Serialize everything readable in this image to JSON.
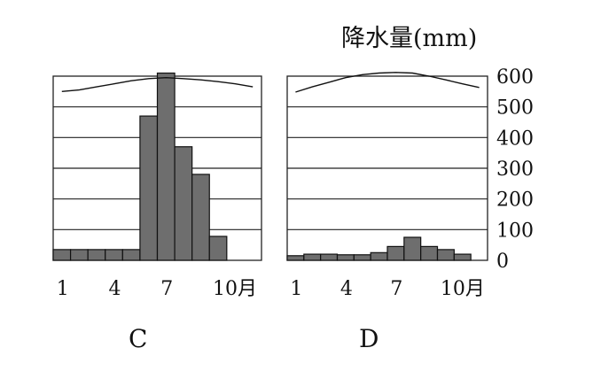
{
  "chart_data": [
    {
      "type": "bar",
      "label": "C",
      "categories": [
        "1",
        "2",
        "3",
        "4",
        "5",
        "6",
        "7",
        "8",
        "9",
        "10",
        "11",
        "12"
      ],
      "x_tick_labels": [
        "1",
        "4",
        "7",
        "10月"
      ],
      "values": [
        35,
        35,
        35,
        35,
        35,
        470,
        610,
        370,
        280,
        78,
        0,
        0
      ],
      "temperature_curve_on_axis": [
        550,
        555,
        565,
        575,
        585,
        592,
        595,
        592,
        588,
        582,
        575,
        565
      ],
      "ylim": [
        0,
        600
      ],
      "grid": true
    },
    {
      "type": "bar",
      "label": "D",
      "categories": [
        "1",
        "2",
        "3",
        "4",
        "5",
        "6",
        "7",
        "8",
        "9",
        "10",
        "11",
        "12"
      ],
      "x_tick_labels": [
        "1",
        "4",
        "7",
        "10月"
      ],
      "values": [
        15,
        20,
        20,
        18,
        18,
        25,
        45,
        75,
        45,
        35,
        20,
        0
      ],
      "temperature_curve_on_axis": [
        548,
        565,
        580,
        595,
        605,
        610,
        612,
        610,
        600,
        588,
        575,
        563
      ],
      "ylim": [
        0,
        600
      ],
      "grid": true
    }
  ],
  "y_axis": {
    "title": "降水量(mm)",
    "ticks": [
      "600",
      "500",
      "400",
      "300",
      "200",
      "100",
      "0"
    ]
  },
  "colors": {
    "bar_fill": "#6e6e6e",
    "line": "#111111"
  }
}
